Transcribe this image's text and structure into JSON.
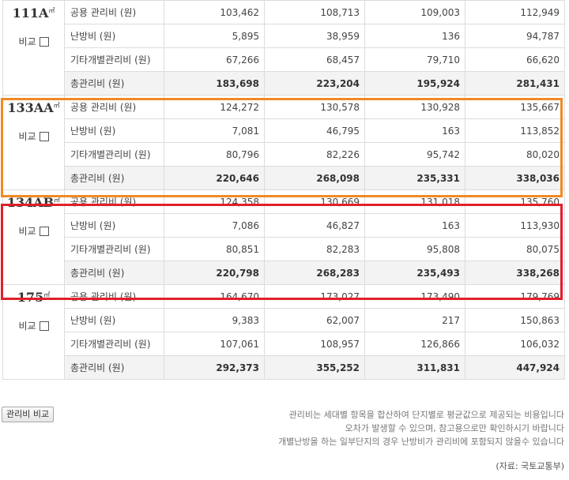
{
  "compare_label": "비교",
  "groups": [
    {
      "type": "111A",
      "unit": "㎡",
      "rows": [
        {
          "label": "공용 관리비 (원)",
          "values": [
            "103,462",
            "108,713",
            "109,003",
            "112,949"
          ]
        },
        {
          "label": "난방비 (원)",
          "values": [
            "5,895",
            "38,959",
            "136",
            "94,787"
          ]
        },
        {
          "label": "기타개별관리비 (원)",
          "values": [
            "67,266",
            "68,457",
            "79,710",
            "66,620"
          ]
        },
        {
          "label": "총관리비 (원)",
          "values": [
            "183,698",
            "223,204",
            "195,924",
            "281,431"
          ],
          "total": true
        }
      ]
    },
    {
      "type": "133AA",
      "unit": "㎡",
      "rows": [
        {
          "label": "공용 관리비 (원)",
          "values": [
            "124,272",
            "130,578",
            "130,928",
            "135,667"
          ]
        },
        {
          "label": "난방비 (원)",
          "values": [
            "7,081",
            "46,795",
            "163",
            "113,852"
          ]
        },
        {
          "label": "기타개별관리비 (원)",
          "values": [
            "80,796",
            "82,226",
            "95,742",
            "80,020"
          ]
        },
        {
          "label": "총관리비 (원)",
          "values": [
            "220,646",
            "268,098",
            "235,331",
            "338,036"
          ],
          "total": true
        }
      ]
    },
    {
      "type": "134AB",
      "unit": "㎡",
      "rows": [
        {
          "label": "공용 관리비 (원)",
          "values": [
            "124,358",
            "130,669",
            "131,018",
            "135,760"
          ]
        },
        {
          "label": "난방비 (원)",
          "values": [
            "7,086",
            "46,827",
            "163",
            "113,930"
          ]
        },
        {
          "label": "기타개별관리비 (원)",
          "values": [
            "80,851",
            "82,283",
            "95,808",
            "80,075"
          ]
        },
        {
          "label": "총관리비 (원)",
          "values": [
            "220,798",
            "268,283",
            "235,493",
            "338,268"
          ],
          "total": true
        }
      ]
    },
    {
      "type": "175",
      "unit": "㎡",
      "rows": [
        {
          "label": "공용 관리비 (원)",
          "values": [
            "164,670",
            "173,027",
            "173,490",
            "179,769"
          ]
        },
        {
          "label": "난방비 (원)",
          "values": [
            "9,383",
            "62,007",
            "217",
            "150,863"
          ]
        },
        {
          "label": "기타개별관리비 (원)",
          "values": [
            "107,061",
            "108,957",
            "126,866",
            "106,032"
          ]
        },
        {
          "label": "총관리비 (원)",
          "values": [
            "292,373",
            "355,252",
            "311,831",
            "447,924"
          ],
          "total": true
        }
      ]
    }
  ],
  "button": {
    "compare_fees": "관리비 비교"
  },
  "notes": [
    "관리비는 세대별 항목을 합산하여 단지별로 평균값으로 제공되는 비용입니다",
    "오차가 발생할 수 있으며, 참고용으로만 확인하시기 바랍니다",
    "개별난방을 하는 일부단지의 경우 난방비가 관리비에 포함되지 않을수 있습니다"
  ],
  "source": "(자료: 국토교통부)",
  "colors": {
    "highlight_orange": "#f08a24",
    "highlight_red": "#e0202a",
    "total_row_bg": "#f3f3f3",
    "border": "#dcdcdc"
  }
}
